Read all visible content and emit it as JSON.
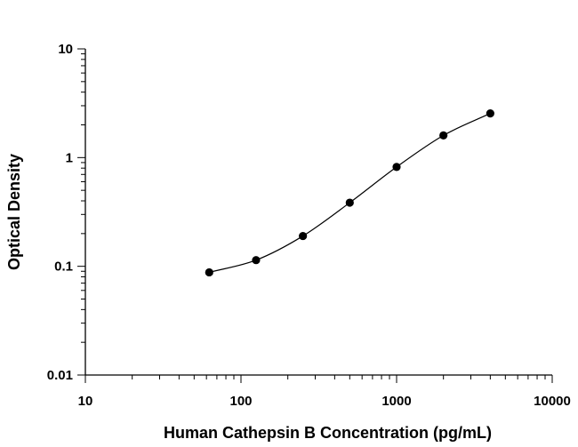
{
  "chart_data": {
    "type": "scatter",
    "xscale": "log",
    "yscale": "log",
    "xlabel": "Human Cathepsin B Concentration (pg/mL)",
    "ylabel": "Optical Density",
    "xlim": [
      10,
      10000
    ],
    "ylim": [
      0.01,
      10
    ],
    "xticks": [
      "10",
      "100",
      "1000",
      "10000"
    ],
    "yticks": [
      "0.01",
      "0.1",
      "1",
      "10"
    ],
    "grid": false,
    "fit_curve": true,
    "series": [
      {
        "x": [
          62.5,
          125,
          250,
          500,
          1000,
          2000,
          4000
        ],
        "y": [
          0.088,
          0.114,
          0.19,
          0.385,
          0.82,
          1.6,
          2.55
        ]
      }
    ]
  }
}
